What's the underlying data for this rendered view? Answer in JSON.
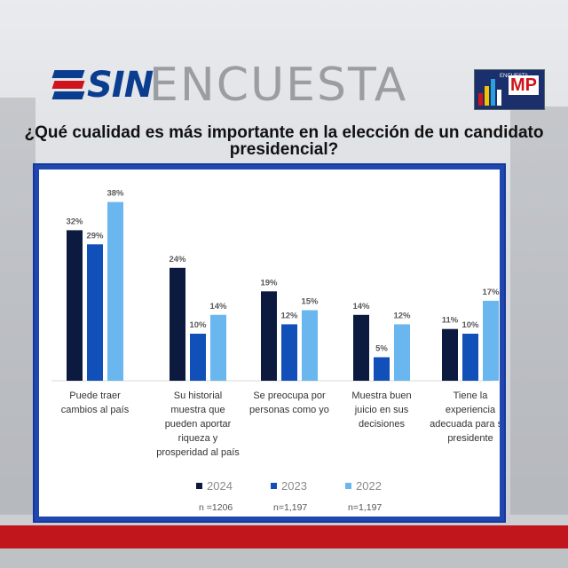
{
  "header": {
    "logo_text": "SIN",
    "banner_text": "ENCUESTA",
    "partner_logo_text": "MP",
    "partner_logo_small": "ENCUESTA"
  },
  "question": {
    "line1": "¿Qué cualidad es más importante en la elección de un candidato",
    "line2": "presidencial?"
  },
  "colors": {
    "frame": "#1e47b0",
    "s2024": "#0b1a3e",
    "s2023": "#1150b8",
    "s2022": "#6ab7ef",
    "footer_red": "#c0161c"
  },
  "chart_data": {
    "type": "bar",
    "categories": [
      [
        "Puede traer",
        "cambios al país"
      ],
      [
        "Su historial",
        "muestra que",
        "pueden aportar",
        "riqueza y",
        "prosperidad al país"
      ],
      [
        "Se preocupa por",
        "personas como yo"
      ],
      [
        "Muestra buen",
        "juicio en sus",
        "decisiones"
      ],
      [
        "Tiene la",
        "experiencia",
        "adecuada para ser",
        "presidente"
      ]
    ],
    "series": [
      {
        "name": "2024",
        "values": [
          32,
          24,
          19,
          14,
          11
        ],
        "labels": [
          "32%",
          "24%",
          "19%",
          "14%",
          "11%"
        ],
        "n": "n =1206"
      },
      {
        "name": "2023",
        "values": [
          29,
          10,
          12,
          5,
          10
        ],
        "labels": [
          "29%",
          "10%",
          "12%",
          "5%",
          "10%"
        ],
        "n": "n=1,197"
      },
      {
        "name": "2022",
        "values": [
          38,
          14,
          15,
          12,
          17
        ],
        "labels": [
          "38%",
          "14%",
          "15%",
          "12%",
          "17%"
        ],
        "n": "n=1,197"
      }
    ],
    "ylim": [
      0,
      40
    ],
    "grid": false,
    "legend": "bottom",
    "title": "",
    "xlabel": "",
    "ylabel": ""
  }
}
